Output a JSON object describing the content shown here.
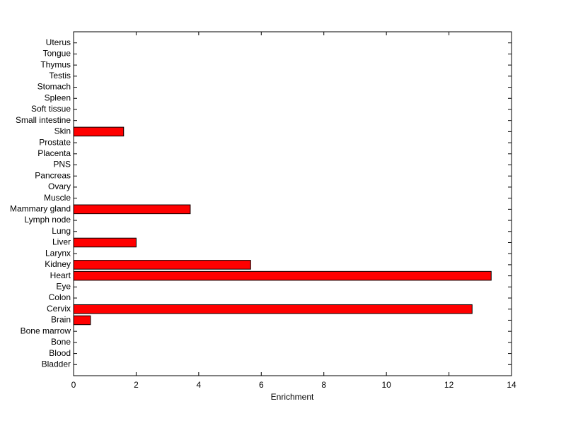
{
  "chart_data": {
    "type": "barh",
    "categories": [
      "Bladder",
      "Blood",
      "Bone",
      "Bone marrow",
      "Brain",
      "Cervix",
      "Colon",
      "Eye",
      "Heart",
      "Kidney",
      "Larynx",
      "Liver",
      "Lung",
      "Lymph node",
      "Mammary gland",
      "Muscle",
      "Ovary",
      "Pancreas",
      "PNS",
      "Placenta",
      "Prostate",
      "Skin",
      "Small intestine",
      "Soft tissue",
      "Spleen",
      "Stomach",
      "Testis",
      "Thymus",
      "Tongue",
      "Uterus"
    ],
    "values": [
      0,
      0,
      0,
      0,
      0.54,
      12.74,
      0,
      0,
      13.35,
      5.66,
      0,
      2.0,
      0,
      0,
      3.73,
      0,
      0,
      0,
      0,
      0,
      0,
      1.6,
      0,
      0,
      0,
      0,
      0,
      0,
      0,
      0
    ],
    "color": "#ff0000",
    "xlabel": "Enrichment",
    "xlim": [
      0,
      14
    ],
    "xticks": [
      0,
      2,
      4,
      6,
      8,
      10,
      12,
      14
    ]
  }
}
